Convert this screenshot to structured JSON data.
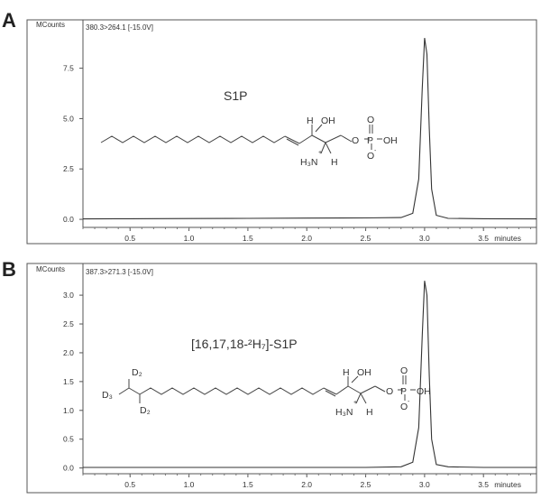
{
  "chart_data": [
    {
      "panel": "A",
      "type": "line",
      "ylabel": "MCounts",
      "transition": "380.3>264.1 [-15.0V]",
      "compound": "S1P",
      "x_tick_labels": [
        "0.5",
        "1.0",
        "1.5",
        "2.0",
        "2.5",
        "3.0",
        "3.5"
      ],
      "x_unit": "minutes",
      "y_tick_labels": [
        "0.0",
        "2.5",
        "5.0",
        "7.5"
      ],
      "xlim": [
        0.1,
        3.95
      ],
      "ylim": [
        -0.4,
        9.9
      ],
      "series": [
        {
          "x": [
            0.1,
            0.5,
            1.0,
            1.5,
            2.0,
            2.5,
            2.8,
            2.9,
            2.95,
            2.98,
            3.0,
            3.02,
            3.04,
            3.06,
            3.1,
            3.2,
            3.5,
            3.95
          ],
          "y": [
            0.02,
            0.03,
            0.04,
            0.05,
            0.06,
            0.07,
            0.09,
            0.3,
            2.0,
            6.5,
            9.0,
            8.2,
            4.5,
            1.5,
            0.2,
            0.05,
            0.03,
            0.02
          ]
        }
      ],
      "structure_labels": {
        "oh_top": "OH",
        "h_top": "H",
        "phosphate_p": "P",
        "phosphate_oh": "OH",
        "phosphate_o": "O",
        "amine": "H₃N",
        "h_bottom": "H",
        "charge_plus": "+",
        "charge_minus": "-"
      }
    },
    {
      "panel": "B",
      "type": "line",
      "ylabel": "MCounts",
      "transition": "387.3>271.3 [-15.0V]",
      "compound": "[16,17,18-²H₇]-S1P",
      "x_tick_labels": [
        "0.5",
        "1.0",
        "1.5",
        "2.0",
        "2.5",
        "3.0",
        "3.5"
      ],
      "x_unit": "minutes",
      "y_tick_labels": [
        "0.0",
        "0.5",
        "1.0",
        "1.5",
        "2.0",
        "2.5",
        "3.0"
      ],
      "xlim": [
        0.1,
        3.95
      ],
      "ylim": [
        -0.1,
        3.55
      ],
      "series": [
        {
          "x": [
            0.1,
            0.5,
            1.0,
            1.5,
            2.0,
            2.5,
            2.8,
            2.9,
            2.95,
            2.98,
            3.0,
            3.02,
            3.04,
            3.06,
            3.1,
            3.2,
            3.5,
            3.95
          ],
          "y": [
            0.01,
            0.01,
            0.01,
            0.01,
            0.01,
            0.01,
            0.02,
            0.1,
            0.7,
            2.3,
            3.25,
            3.0,
            1.6,
            0.5,
            0.06,
            0.02,
            0.01,
            0.01
          ]
        }
      ],
      "structure_labels": {
        "d2_top": "D₂",
        "d3": "D₃",
        "d2_bottom": "D₂",
        "oh_top": "OH",
        "h_top": "H",
        "phosphate_p": "P",
        "phosphate_oh": "OH",
        "phosphate_o": "O",
        "amine": "H₃N",
        "h_bottom": "H",
        "charge_plus": "+",
        "charge_minus": "-"
      }
    }
  ],
  "panel_letters": [
    "A",
    "B"
  ]
}
